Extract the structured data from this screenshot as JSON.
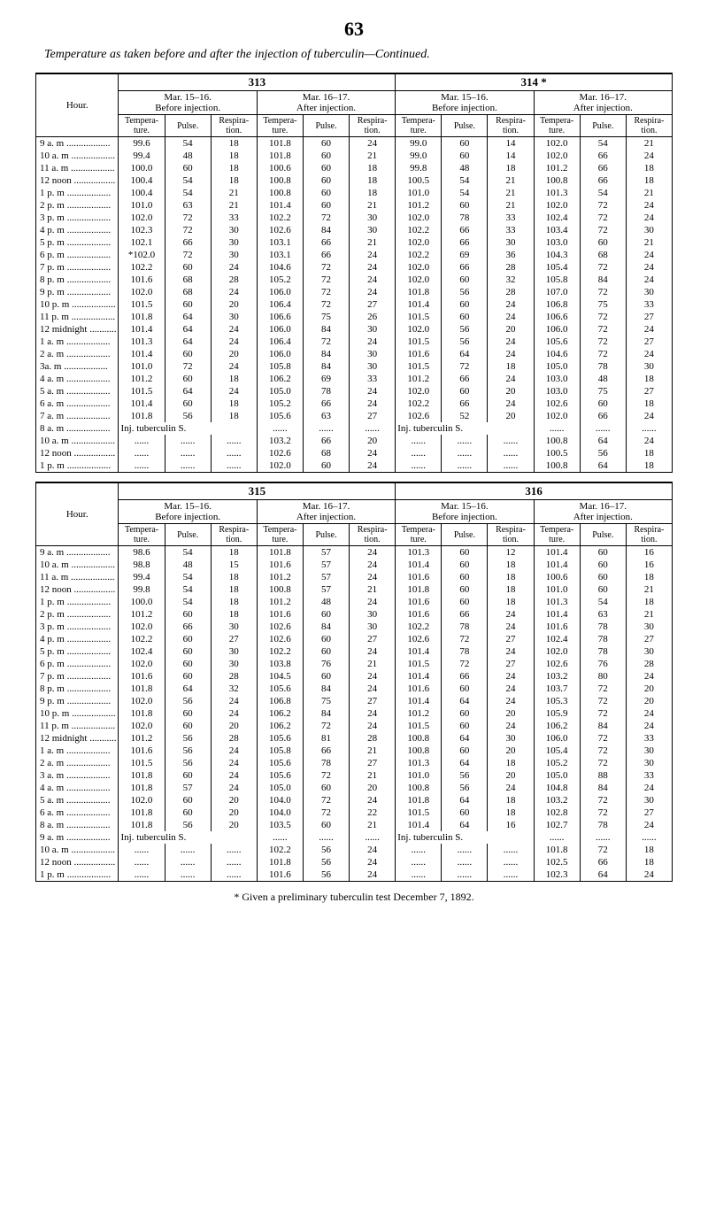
{
  "page_number": "63",
  "title_html": "Temperature as taken before and after the injection of tuberculin—Continued.",
  "col_labels": {
    "hour": "Hour.",
    "before": "Before injection.",
    "after": "After injection.",
    "temp": "Tempera-\nture.",
    "pulse": "Pulse.",
    "resp": "Respira-\ntion."
  },
  "dates": {
    "313": {
      "label": "313",
      "before": "Mar. 15–16.",
      "after": "Mar. 16–17."
    },
    "314": {
      "label": "314 *",
      "before": "Mar. 15–16.",
      "after": "Mar. 16–17."
    },
    "315": {
      "label": "315",
      "before": "Mar. 15–16.",
      "after": "Mar. 16–17."
    },
    "316": {
      "label": "316",
      "before": "Mar. 15–16.",
      "after": "Mar. 16–17."
    }
  },
  "table1": {
    "rows": [
      {
        "h": "9 a. m",
        "b": [
          "99.6",
          "54",
          "18"
        ],
        "a": [
          "101.8",
          "60",
          "24"
        ],
        "b2": [
          "99.0",
          "60",
          "14"
        ],
        "a2": [
          "102.0",
          "54",
          "21"
        ]
      },
      {
        "h": "10 a. m",
        "b": [
          "99.4",
          "48",
          "18"
        ],
        "a": [
          "101.8",
          "60",
          "21"
        ],
        "b2": [
          "99.0",
          "60",
          "14"
        ],
        "a2": [
          "102.0",
          "66",
          "24"
        ]
      },
      {
        "h": "11 a. m",
        "b": [
          "100.0",
          "60",
          "18"
        ],
        "a": [
          "100.6",
          "60",
          "18"
        ],
        "b2": [
          "99.8",
          "48",
          "18"
        ],
        "a2": [
          "101.2",
          "66",
          "18"
        ]
      },
      {
        "h": "12 noon",
        "b": [
          "100.4",
          "54",
          "18"
        ],
        "a": [
          "100.8",
          "60",
          "18"
        ],
        "b2": [
          "100.5",
          "54",
          "21"
        ],
        "a2": [
          "100.8",
          "66",
          "18"
        ]
      },
      {
        "h": "1 p. m",
        "b": [
          "100.4",
          "54",
          "21"
        ],
        "a": [
          "100.8",
          "60",
          "18"
        ],
        "b2": [
          "101.0",
          "54",
          "21"
        ],
        "a2": [
          "101.3",
          "54",
          "21"
        ]
      },
      {
        "h": "2 p. m",
        "b": [
          "101.0",
          "63",
          "21"
        ],
        "a": [
          "101.4",
          "60",
          "21"
        ],
        "b2": [
          "101.2",
          "60",
          "21"
        ],
        "a2": [
          "102.0",
          "72",
          "24"
        ]
      },
      {
        "h": "3 p. m",
        "b": [
          "102.0",
          "72",
          "33"
        ],
        "a": [
          "102.2",
          "72",
          "30"
        ],
        "b2": [
          "102.0",
          "78",
          "33"
        ],
        "a2": [
          "102.4",
          "72",
          "24"
        ]
      },
      {
        "h": "4 p. m",
        "b": [
          "102.3",
          "72",
          "30"
        ],
        "a": [
          "102.6",
          "84",
          "30"
        ],
        "b2": [
          "102.2",
          "66",
          "33"
        ],
        "a2": [
          "103.4",
          "72",
          "30"
        ]
      },
      {
        "h": "5 p. m",
        "b": [
          "102.1",
          "66",
          "30"
        ],
        "a": [
          "103.1",
          "66",
          "21"
        ],
        "b2": [
          "102.0",
          "66",
          "30"
        ],
        "a2": [
          "103.0",
          "60",
          "21"
        ]
      },
      {
        "h": "6 p. m",
        "b": [
          "*102.0",
          "72",
          "30"
        ],
        "a": [
          "103.1",
          "66",
          "24"
        ],
        "b2": [
          "102.2",
          "69",
          "36"
        ],
        "a2": [
          "104.3",
          "68",
          "24"
        ]
      },
      {
        "h": "7 p. m",
        "b": [
          "102.2",
          "60",
          "24"
        ],
        "a": [
          "104.6",
          "72",
          "24"
        ],
        "b2": [
          "102.0",
          "66",
          "28"
        ],
        "a2": [
          "105.4",
          "72",
          "24"
        ]
      },
      {
        "h": "8 p. m",
        "b": [
          "101.6",
          "68",
          "28"
        ],
        "a": [
          "105.2",
          "72",
          "24"
        ],
        "b2": [
          "102.0",
          "60",
          "32"
        ],
        "a2": [
          "105.8",
          "84",
          "24"
        ]
      },
      {
        "h": "9 p. m",
        "b": [
          "102.0",
          "68",
          "24"
        ],
        "a": [
          "106.0",
          "72",
          "24"
        ],
        "b2": [
          "101.8",
          "56",
          "28"
        ],
        "a2": [
          "107.0",
          "72",
          "30"
        ]
      },
      {
        "h": "10 p. m",
        "b": [
          "101.5",
          "60",
          "20"
        ],
        "a": [
          "106.4",
          "72",
          "27"
        ],
        "b2": [
          "101.4",
          "60",
          "24"
        ],
        "a2": [
          "106.8",
          "75",
          "33"
        ]
      },
      {
        "h": "11 p. m",
        "b": [
          "101.8",
          "64",
          "30"
        ],
        "a": [
          "106.6",
          "75",
          "26"
        ],
        "b2": [
          "101.5",
          "60",
          "24"
        ],
        "a2": [
          "106.6",
          "72",
          "27"
        ]
      },
      {
        "h": "12 midnight",
        "b": [
          "101.4",
          "64",
          "24"
        ],
        "a": [
          "106.0",
          "84",
          "30"
        ],
        "b2": [
          "102.0",
          "56",
          "20"
        ],
        "a2": [
          "106.0",
          "72",
          "24"
        ]
      },
      {
        "h": "1 a. m",
        "b": [
          "101.3",
          "64",
          "24"
        ],
        "a": [
          "106.4",
          "72",
          "24"
        ],
        "b2": [
          "101.5",
          "56",
          "24"
        ],
        "a2": [
          "105.6",
          "72",
          "27"
        ]
      },
      {
        "h": "2 a. m",
        "b": [
          "101.4",
          "60",
          "20"
        ],
        "a": [
          "106.0",
          "84",
          "30"
        ],
        "b2": [
          "101.6",
          "64",
          "24"
        ],
        "a2": [
          "104.6",
          "72",
          "24"
        ]
      },
      {
        "h": "3a. m",
        "b": [
          "101.0",
          "72",
          "24"
        ],
        "a": [
          "105.8",
          "84",
          "30"
        ],
        "b2": [
          "101.5",
          "72",
          "18"
        ],
        "a2": [
          "105.0",
          "78",
          "30"
        ]
      },
      {
        "h": "4 a. m",
        "b": [
          "101.2",
          "60",
          "18"
        ],
        "a": [
          "106.2",
          "69",
          "33"
        ],
        "b2": [
          "101.2",
          "66",
          "24"
        ],
        "a2": [
          "103.0",
          "48",
          "18"
        ]
      },
      {
        "h": "5 a. m",
        "b": [
          "101.5",
          "64",
          "24"
        ],
        "a": [
          "105.0",
          "78",
          "24"
        ],
        "b2": [
          "102.0",
          "60",
          "20"
        ],
        "a2": [
          "103.0",
          "75",
          "27"
        ]
      },
      {
        "h": "6 a. m",
        "b": [
          "101.4",
          "60",
          "18"
        ],
        "a": [
          "105.2",
          "66",
          "24"
        ],
        "b2": [
          "102.2",
          "66",
          "24"
        ],
        "a2": [
          "102.6",
          "60",
          "18"
        ]
      },
      {
        "h": "7 a. m",
        "b": [
          "101.8",
          "56",
          "18"
        ],
        "a": [
          "105.6",
          "63",
          "27"
        ],
        "b2": [
          "102.6",
          "52",
          "20"
        ],
        "a2": [
          "102.0",
          "66",
          "24"
        ]
      }
    ],
    "inj_label": "Inj. tuberculin S.",
    "inj_row_h": "8 a. m",
    "post_inj": [
      {
        "h": "10 a. m",
        "a": [
          "103.2",
          "66",
          "20"
        ],
        "a2": [
          "100.8",
          "64",
          "24"
        ]
      },
      {
        "h": "12 noon",
        "a": [
          "102.6",
          "68",
          "24"
        ],
        "a2": [
          "100.5",
          "56",
          "18"
        ]
      },
      {
        "h": "1 p. m",
        "a": [
          "102.0",
          "60",
          "24"
        ],
        "a2": [
          "100.8",
          "64",
          "18"
        ]
      }
    ]
  },
  "table2": {
    "rows": [
      {
        "h": "9 a. m",
        "b": [
          "98.6",
          "54",
          "18"
        ],
        "a": [
          "101.8",
          "57",
          "24"
        ],
        "b2": [
          "101.3",
          "60",
          "12"
        ],
        "a2": [
          "101.4",
          "60",
          "16"
        ]
      },
      {
        "h": "10 a. m",
        "b": [
          "98.8",
          "48",
          "15"
        ],
        "a": [
          "101.6",
          "57",
          "24"
        ],
        "b2": [
          "101.4",
          "60",
          "18"
        ],
        "a2": [
          "101.4",
          "60",
          "16"
        ]
      },
      {
        "h": "11 a. m",
        "b": [
          "99.4",
          "54",
          "18"
        ],
        "a": [
          "101.2",
          "57",
          "24"
        ],
        "b2": [
          "101.6",
          "60",
          "18"
        ],
        "a2": [
          "100.6",
          "60",
          "18"
        ]
      },
      {
        "h": "12 noon",
        "b": [
          "99.8",
          "54",
          "18"
        ],
        "a": [
          "100.8",
          "57",
          "21"
        ],
        "b2": [
          "101.8",
          "60",
          "18"
        ],
        "a2": [
          "101.0",
          "60",
          "21"
        ]
      },
      {
        "h": "1 p. m",
        "b": [
          "100.0",
          "54",
          "18"
        ],
        "a": [
          "101.2",
          "48",
          "24"
        ],
        "b2": [
          "101.6",
          "60",
          "18"
        ],
        "a2": [
          "101.3",
          "54",
          "18"
        ]
      },
      {
        "h": "2 p. m",
        "b": [
          "101.2",
          "60",
          "18"
        ],
        "a": [
          "101.6",
          "60",
          "30"
        ],
        "b2": [
          "101.6",
          "66",
          "24"
        ],
        "a2": [
          "101.4",
          "63",
          "21"
        ]
      },
      {
        "h": "3 p. m",
        "b": [
          "102.0",
          "66",
          "30"
        ],
        "a": [
          "102.6",
          "84",
          "30"
        ],
        "b2": [
          "102.2",
          "78",
          "24"
        ],
        "a2": [
          "101.6",
          "78",
          "30"
        ]
      },
      {
        "h": "4 p. m",
        "b": [
          "102.2",
          "60",
          "27"
        ],
        "a": [
          "102.6",
          "60",
          "27"
        ],
        "b2": [
          "102.6",
          "72",
          "27"
        ],
        "a2": [
          "102.4",
          "78",
          "27"
        ]
      },
      {
        "h": "5 p. m",
        "b": [
          "102.4",
          "60",
          "30"
        ],
        "a": [
          "102.2",
          "60",
          "24"
        ],
        "b2": [
          "101.4",
          "78",
          "24"
        ],
        "a2": [
          "102.0",
          "78",
          "30"
        ]
      },
      {
        "h": "6 p. m",
        "b": [
          "102.0",
          "60",
          "30"
        ],
        "a": [
          "103.8",
          "76",
          "21"
        ],
        "b2": [
          "101.5",
          "72",
          "27"
        ],
        "a2": [
          "102.6",
          "76",
          "28"
        ]
      },
      {
        "h": "7 p. m",
        "b": [
          "101.6",
          "60",
          "28"
        ],
        "a": [
          "104.5",
          "60",
          "24"
        ],
        "b2": [
          "101.4",
          "66",
          "24"
        ],
        "a2": [
          "103.2",
          "80",
          "24"
        ]
      },
      {
        "h": "8 p. m",
        "b": [
          "101.8",
          "64",
          "32"
        ],
        "a": [
          "105.6",
          "84",
          "24"
        ],
        "b2": [
          "101.6",
          "60",
          "24"
        ],
        "a2": [
          "103.7",
          "72",
          "20"
        ]
      },
      {
        "h": "9 p. m",
        "b": [
          "102.0",
          "56",
          "24"
        ],
        "a": [
          "106.8",
          "75",
          "27"
        ],
        "b2": [
          "101.4",
          "64",
          "24"
        ],
        "a2": [
          "105.3",
          "72",
          "20"
        ]
      },
      {
        "h": "10 p. m",
        "b": [
          "101.8",
          "60",
          "24"
        ],
        "a": [
          "106.2",
          "84",
          "24"
        ],
        "b2": [
          "101.2",
          "60",
          "20"
        ],
        "a2": [
          "105.9",
          "72",
          "24"
        ]
      },
      {
        "h": "11 p. m",
        "b": [
          "102.0",
          "60",
          "20"
        ],
        "a": [
          "106.2",
          "72",
          "24"
        ],
        "b2": [
          "101.5",
          "60",
          "24"
        ],
        "a2": [
          "106.2",
          "84",
          "24"
        ]
      },
      {
        "h": "12 midnight",
        "b": [
          "101.2",
          "56",
          "28"
        ],
        "a": [
          "105.6",
          "81",
          "28"
        ],
        "b2": [
          "100.8",
          "64",
          "30"
        ],
        "a2": [
          "106.0",
          "72",
          "33"
        ]
      },
      {
        "h": "1 a. m",
        "b": [
          "101.6",
          "56",
          "24"
        ],
        "a": [
          "105.8",
          "66",
          "21"
        ],
        "b2": [
          "100.8",
          "60",
          "20"
        ],
        "a2": [
          "105.4",
          "72",
          "30"
        ]
      },
      {
        "h": "2 a. m",
        "b": [
          "101.5",
          "56",
          "24"
        ],
        "a": [
          "105.6",
          "78",
          "27"
        ],
        "b2": [
          "101.3",
          "64",
          "18"
        ],
        "a2": [
          "105.2",
          "72",
          "30"
        ]
      },
      {
        "h": "3 a. m",
        "b": [
          "101.8",
          "60",
          "24"
        ],
        "a": [
          "105.6",
          "72",
          "21"
        ],
        "b2": [
          "101.0",
          "56",
          "20"
        ],
        "a2": [
          "105.0",
          "88",
          "33"
        ]
      },
      {
        "h": "4 a. m",
        "b": [
          "101.8",
          "57",
          "24"
        ],
        "a": [
          "105.0",
          "60",
          "20"
        ],
        "b2": [
          "100.8",
          "56",
          "24"
        ],
        "a2": [
          "104.8",
          "84",
          "24"
        ]
      },
      {
        "h": "5 a. m",
        "b": [
          "102.0",
          "60",
          "20"
        ],
        "a": [
          "104.0",
          "72",
          "24"
        ],
        "b2": [
          "101.8",
          "64",
          "18"
        ],
        "a2": [
          "103.2",
          "72",
          "30"
        ]
      },
      {
        "h": "6 a. m",
        "b": [
          "101.8",
          "60",
          "20"
        ],
        "a": [
          "104.0",
          "72",
          "22"
        ],
        "b2": [
          "101.5",
          "60",
          "18"
        ],
        "a2": [
          "102.8",
          "72",
          "27"
        ]
      },
      {
        "h": "8 a. m",
        "b": [
          "101.8",
          "56",
          "20"
        ],
        "a": [
          "103.5",
          "60",
          "21"
        ],
        "b2": [
          "101.4",
          "64",
          "16"
        ],
        "a2": [
          "102.7",
          "78",
          "24"
        ]
      }
    ],
    "inj_label": "Inj. tuberculin S.",
    "inj_row_h": "9 a. m",
    "post_inj": [
      {
        "h": "10 a. m",
        "a": [
          "102.2",
          "56",
          "24"
        ],
        "a2": [
          "101.8",
          "72",
          "18"
        ]
      },
      {
        "h": "12 noon",
        "a": [
          "101.8",
          "56",
          "24"
        ],
        "a2": [
          "102.5",
          "66",
          "18"
        ]
      },
      {
        "h": "1 p. m",
        "a": [
          "101.6",
          "56",
          "24"
        ],
        "a2": [
          "102.3",
          "64",
          "24"
        ]
      }
    ]
  },
  "footnote": "* Given a preliminary tuberculin test December 7, 1892."
}
